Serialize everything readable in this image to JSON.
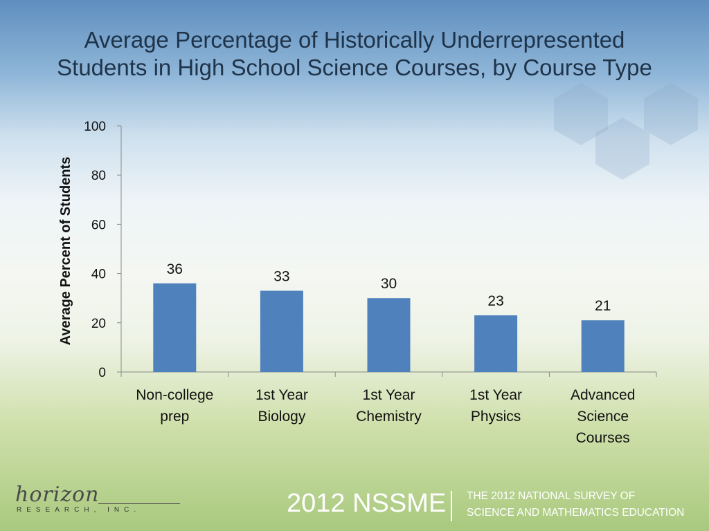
{
  "title_lines": [
    "Average Percentage of Historically Underrepresented",
    "Students in High School Science Courses, by Course Type"
  ],
  "chart_data": {
    "type": "bar",
    "title": "Average Percentage of Historically Underrepresented Students in High School Science Courses, by Course Type",
    "ylabel": "Average Percent of Students",
    "xlabel": "",
    "ylim": [
      0,
      100
    ],
    "yticks": [
      0,
      20,
      40,
      60,
      80,
      100
    ],
    "grid": false,
    "categories": [
      [
        "Non-college",
        "prep"
      ],
      [
        "1st Year",
        "Biology"
      ],
      [
        "1st Year",
        "Chemistry"
      ],
      [
        "1st Year",
        "Physics"
      ],
      [
        "Advanced",
        "Science",
        "Courses"
      ]
    ],
    "values": [
      36,
      33,
      30,
      23,
      21
    ],
    "data_labels": [
      "36",
      "33",
      "30",
      "23",
      "21"
    ],
    "bar_color": "#4f81bd"
  },
  "footer": {
    "logo_text": "horizon",
    "logo_subtext": "RESEARCH, INC.",
    "survey_abbrev": "2012 NSSME",
    "survey_line1": "THE 2012 NATIONAL SURVEY OF",
    "survey_line2": "SCIENCE AND MATHEMATICS EDUCATION"
  }
}
